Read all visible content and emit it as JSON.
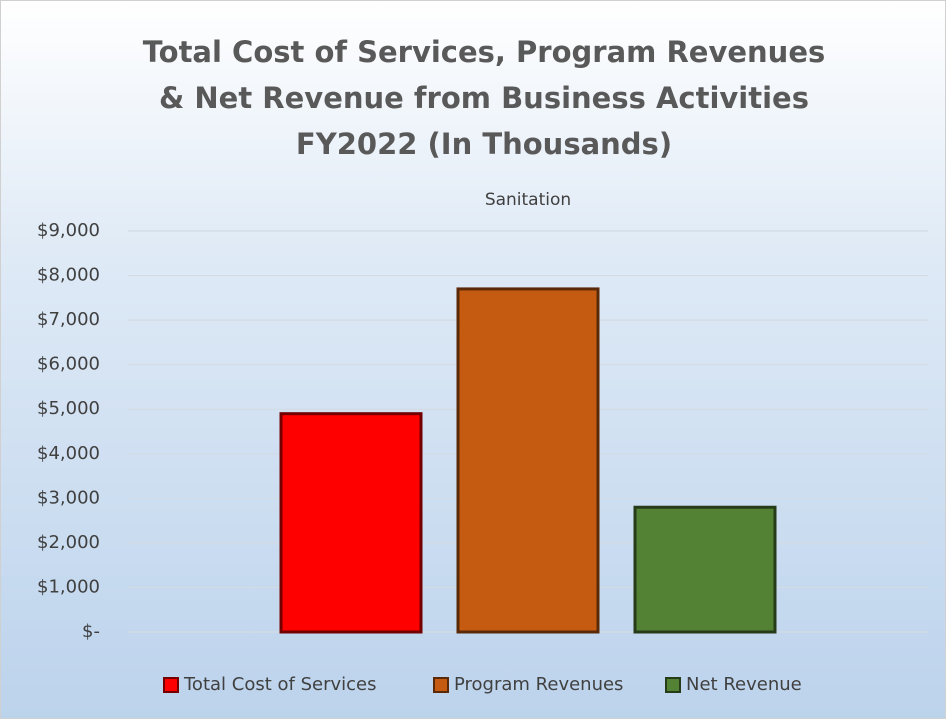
{
  "chart_data": {
    "type": "bar",
    "title": [
      "Total Cost of Services, Program Revenues",
      "& Net Revenue from Business Activities",
      "FY2022 (In Thousands)"
    ],
    "categories": [
      "Sanitation"
    ],
    "series": [
      {
        "name": "Total Cost of Services",
        "color": "#ff0000",
        "values": [
          4900
        ]
      },
      {
        "name": "Program Revenues",
        "color": "#c55a11",
        "values": [
          7700
        ]
      },
      {
        "name": "Net Revenue",
        "color": "#548235",
        "values": [
          2800
        ]
      }
    ],
    "ylim": [
      0,
      9000
    ],
    "yticks": [
      {
        "value": 0,
        "label": "$-"
      },
      {
        "value": 1000,
        "label": "$1,000"
      },
      {
        "value": 2000,
        "label": "$2,000"
      },
      {
        "value": 3000,
        "label": "$3,000"
      },
      {
        "value": 4000,
        "label": "$4,000"
      },
      {
        "value": 5000,
        "label": "$5,000"
      },
      {
        "value": 6000,
        "label": "$6,000"
      },
      {
        "value": 7000,
        "label": "$7,000"
      },
      {
        "value": 8000,
        "label": "$8,000"
      },
      {
        "value": 9000,
        "label": "$9,000"
      }
    ],
    "grid": true,
    "legend": "bottom"
  }
}
